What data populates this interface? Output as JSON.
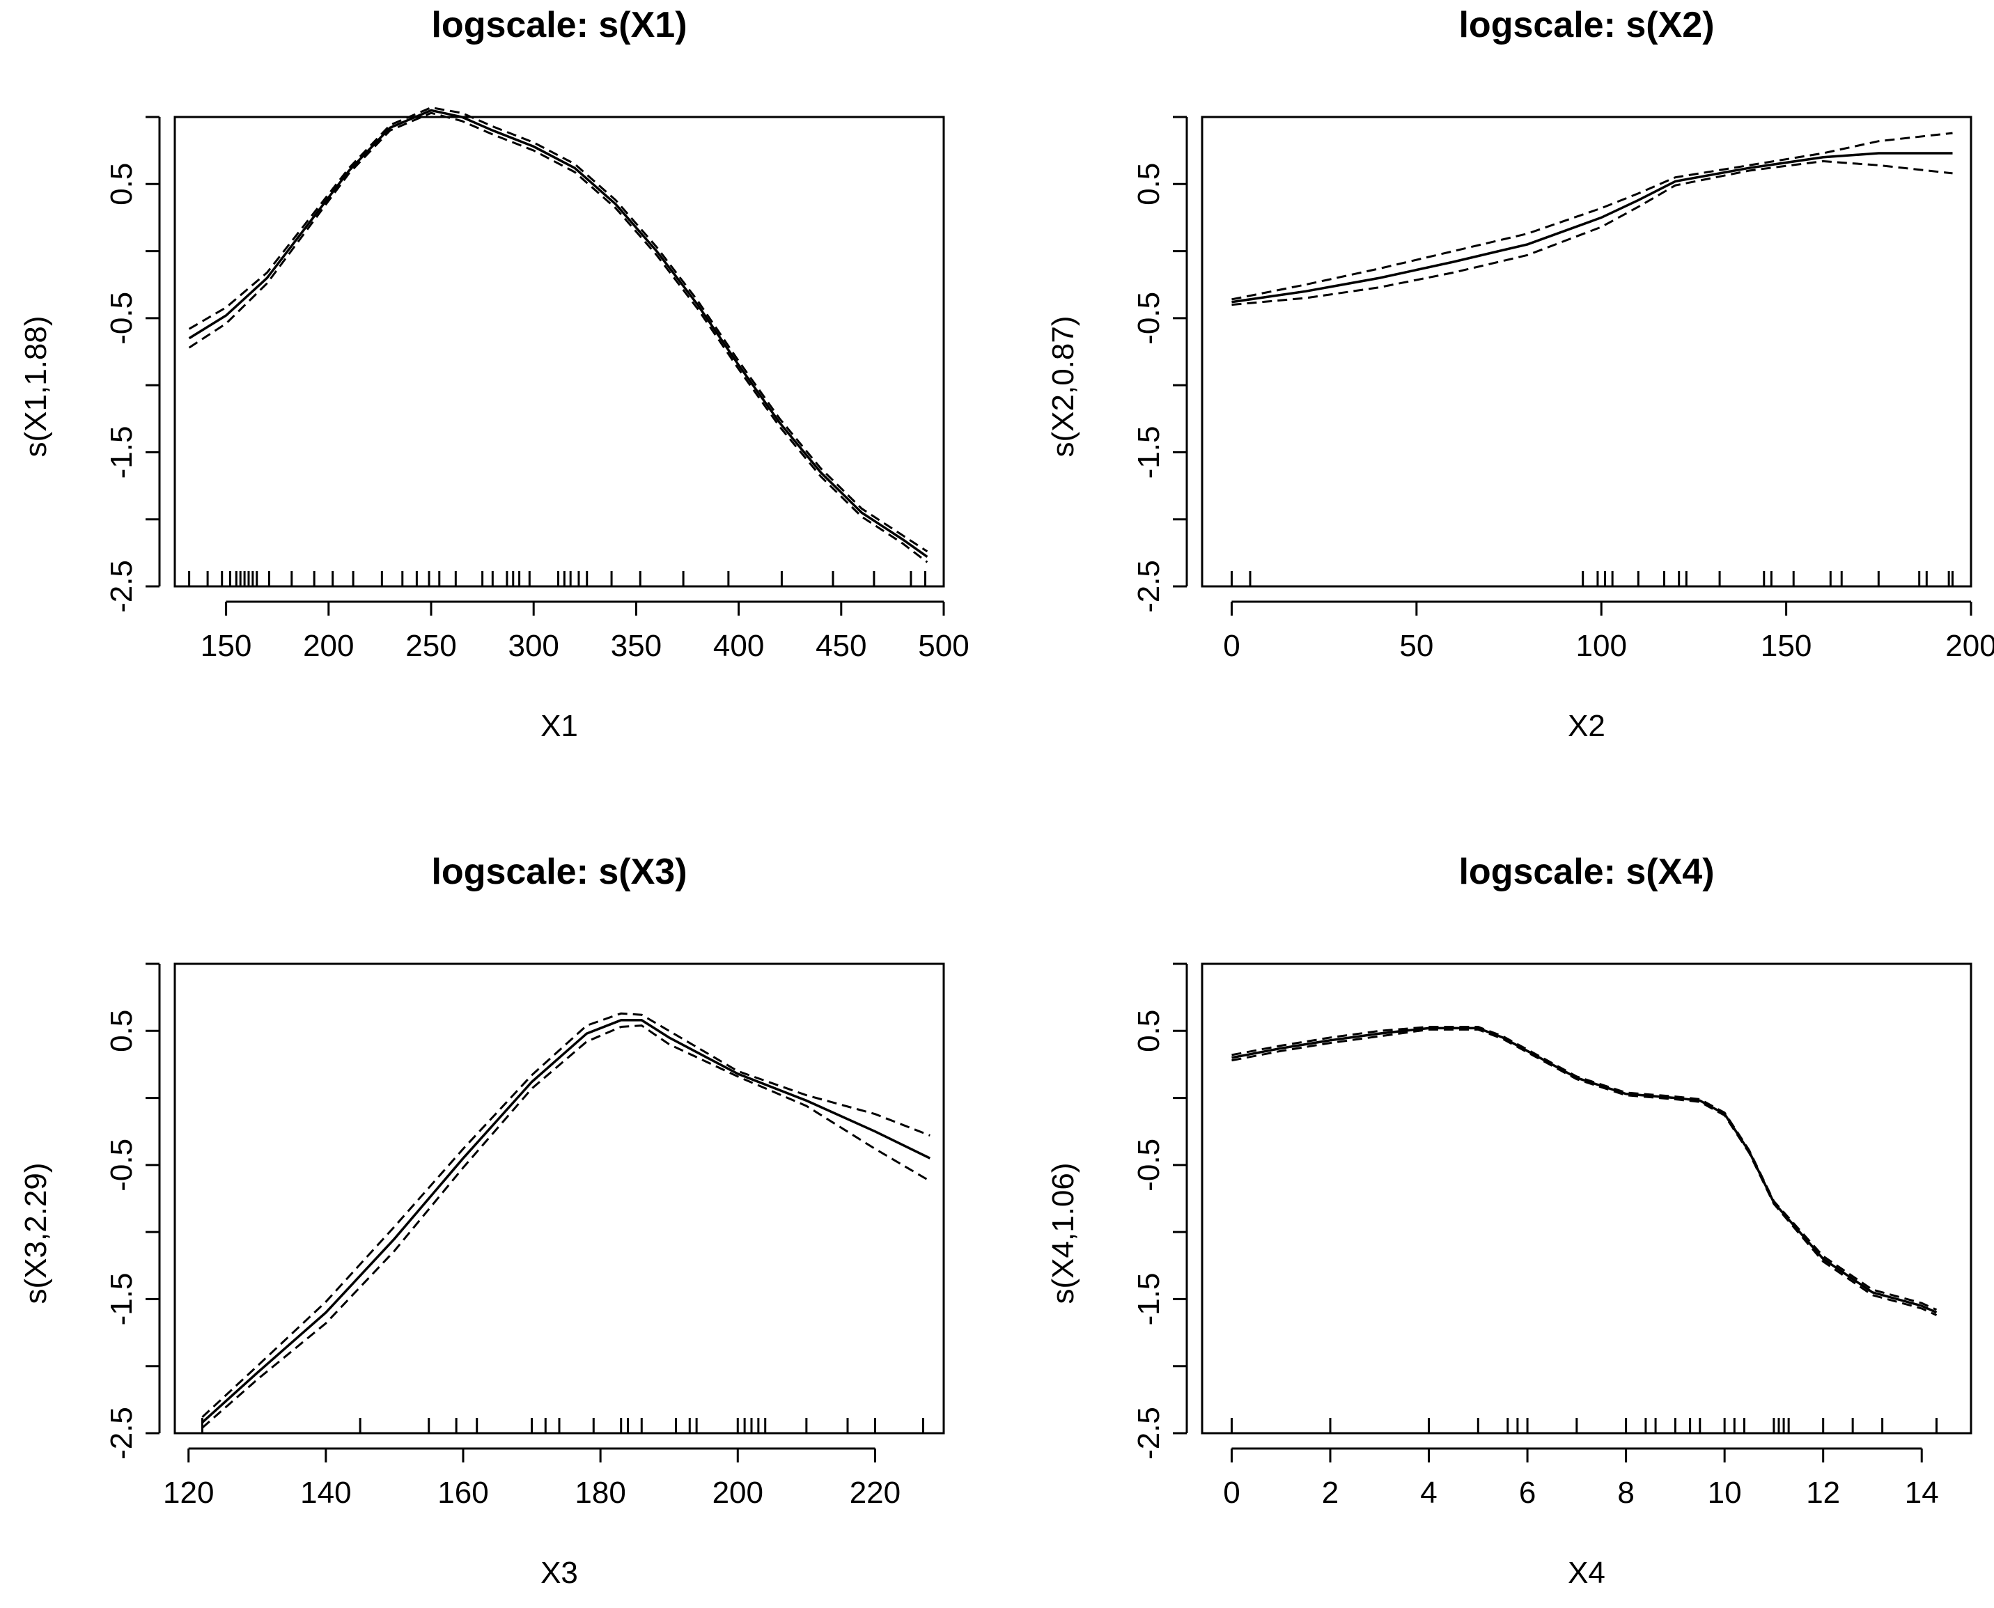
{
  "colors": {
    "line": "#000000",
    "background": "#ffffff"
  },
  "chart_data": [
    {
      "type": "line",
      "title": "logscale: s(X1)",
      "xlabel": "X1",
      "ylabel": "s(X1,1.88)",
      "xlim": [
        125,
        500
      ],
      "ylim": [
        -2.5,
        1.0
      ],
      "xticks": [
        150,
        200,
        250,
        300,
        350,
        400,
        450,
        500
      ],
      "yticks": [
        -2.5,
        -1.5,
        -0.5,
        0.5
      ],
      "series": [
        {
          "name": "fit",
          "style": "solid",
          "x": [
            132,
            150,
            170,
            190,
            210,
            230,
            250,
            265,
            280,
            300,
            320,
            340,
            360,
            380,
            400,
            420,
            440,
            460,
            480,
            492
          ],
          "y": [
            -0.65,
            -0.48,
            -0.2,
            0.2,
            0.6,
            0.92,
            1.05,
            1.0,
            0.9,
            0.78,
            0.62,
            0.35,
            0.0,
            -0.4,
            -0.85,
            -1.28,
            -1.65,
            -1.95,
            -2.15,
            -2.28
          ]
        },
        {
          "name": "upper",
          "style": "dashed",
          "x": [
            132,
            150,
            170,
            190,
            210,
            230,
            250,
            265,
            280,
            300,
            320,
            340,
            360,
            380,
            400,
            420,
            440,
            460,
            480,
            492
          ],
          "y": [
            -0.58,
            -0.42,
            -0.16,
            0.23,
            0.62,
            0.94,
            1.07,
            1.03,
            0.93,
            0.81,
            0.65,
            0.38,
            0.03,
            -0.37,
            -0.82,
            -1.25,
            -1.62,
            -1.92,
            -2.12,
            -2.24
          ]
        },
        {
          "name": "lower",
          "style": "dashed",
          "x": [
            132,
            150,
            170,
            190,
            210,
            230,
            250,
            265,
            280,
            300,
            320,
            340,
            360,
            380,
            400,
            420,
            440,
            460,
            480,
            492
          ],
          "y": [
            -0.72,
            -0.54,
            -0.24,
            0.17,
            0.58,
            0.9,
            1.03,
            0.97,
            0.87,
            0.75,
            0.59,
            0.32,
            -0.03,
            -0.43,
            -0.88,
            -1.31,
            -1.68,
            -1.98,
            -2.18,
            -2.32
          ]
        }
      ],
      "rug": [
        132,
        141,
        148,
        152,
        155,
        157,
        159,
        161,
        163,
        165,
        171,
        182,
        193,
        202,
        212,
        226,
        236,
        243,
        249,
        254,
        262,
        275,
        280,
        287,
        290,
        293,
        298,
        312,
        315,
        318,
        322,
        326,
        338,
        352,
        373,
        395,
        421,
        446,
        466,
        484,
        491
      ]
    },
    {
      "type": "line",
      "title": "logscale: s(X2)",
      "xlabel": "X2",
      "ylabel": "s(X2,0.87)",
      "xlim": [
        -8,
        200
      ],
      "ylim": [
        -2.5,
        1.0
      ],
      "xticks": [
        0,
        50,
        100,
        150,
        200
      ],
      "yticks": [
        -2.5,
        -1.5,
        -0.5,
        0.5
      ],
      "series": [
        {
          "name": "fit",
          "style": "solid",
          "x": [
            0,
            20,
            40,
            60,
            80,
            100,
            110,
            120,
            140,
            160,
            175,
            195
          ],
          "y": [
            -0.38,
            -0.3,
            -0.2,
            -0.08,
            0.05,
            0.25,
            0.38,
            0.52,
            0.62,
            0.7,
            0.73,
            0.73
          ]
        },
        {
          "name": "upper",
          "style": "dashed",
          "x": [
            0,
            20,
            40,
            60,
            80,
            100,
            110,
            120,
            140,
            160,
            175,
            195
          ],
          "y": [
            -0.36,
            -0.25,
            -0.13,
            0.0,
            0.13,
            0.32,
            0.43,
            0.55,
            0.64,
            0.73,
            0.82,
            0.88
          ]
        },
        {
          "name": "lower",
          "style": "dashed",
          "x": [
            0,
            20,
            40,
            60,
            80,
            100,
            110,
            120,
            140,
            160,
            175,
            195
          ],
          "y": [
            -0.4,
            -0.35,
            -0.27,
            -0.16,
            -0.03,
            0.18,
            0.33,
            0.49,
            0.6,
            0.67,
            0.64,
            0.58
          ]
        }
      ],
      "rug": [
        0,
        5,
        95,
        99,
        101,
        103,
        110,
        117,
        121,
        123,
        132,
        144,
        146,
        152,
        162,
        165,
        175,
        186,
        188,
        194,
        195
      ]
    },
    {
      "type": "line",
      "title": "logscale: s(X3)",
      "xlabel": "X3",
      "ylabel": "s(X3,2.29)",
      "xlim": [
        118,
        230
      ],
      "ylim": [
        -2.5,
        1.0
      ],
      "xticks": [
        120,
        140,
        160,
        180,
        200,
        220
      ],
      "yticks": [
        -2.5,
        -1.5,
        -0.5,
        0.5
      ],
      "series": [
        {
          "name": "fit",
          "style": "solid",
          "x": [
            122,
            130,
            140,
            150,
            160,
            170,
            178,
            183,
            186,
            190,
            200,
            210,
            220,
            228
          ],
          "y": [
            -2.42,
            -2.05,
            -1.6,
            -1.05,
            -0.45,
            0.12,
            0.48,
            0.58,
            0.58,
            0.45,
            0.18,
            -0.02,
            -0.25,
            -0.45
          ]
        },
        {
          "name": "upper",
          "style": "dashed",
          "x": [
            122,
            130,
            140,
            150,
            160,
            170,
            178,
            183,
            186,
            190,
            200,
            210,
            220,
            228
          ],
          "y": [
            -2.38,
            -2.0,
            -1.52,
            -0.96,
            -0.38,
            0.17,
            0.54,
            0.63,
            0.62,
            0.5,
            0.2,
            0.02,
            -0.12,
            -0.28
          ]
        },
        {
          "name": "lower",
          "style": "dashed",
          "x": [
            122,
            130,
            140,
            150,
            160,
            170,
            178,
            183,
            186,
            190,
            200,
            210,
            220,
            228
          ],
          "y": [
            -2.46,
            -2.1,
            -1.68,
            -1.14,
            -0.52,
            0.07,
            0.42,
            0.53,
            0.54,
            0.4,
            0.16,
            -0.06,
            -0.38,
            -0.62
          ]
        }
      ],
      "rug": [
        122,
        145,
        155,
        159,
        162,
        170,
        172,
        174,
        179,
        183,
        184,
        186,
        191,
        193,
        194,
        200,
        201,
        202,
        203,
        204,
        210,
        216,
        220,
        227
      ]
    },
    {
      "type": "line",
      "title": "logscale: s(X4)",
      "xlabel": "X4",
      "ylabel": "s(X4,1.06)",
      "xlim": [
        -0.6,
        15
      ],
      "ylim": [
        -2.5,
        1.0
      ],
      "xticks": [
        0,
        2,
        4,
        6,
        8,
        10,
        12,
        14
      ],
      "yticks": [
        -2.5,
        -1.5,
        -0.5,
        0.5
      ],
      "series": [
        {
          "name": "fit",
          "style": "solid",
          "x": [
            0,
            1,
            2,
            3,
            4,
            5,
            5.5,
            6,
            7,
            8,
            9,
            9.5,
            10,
            10.5,
            11,
            12,
            13,
            14,
            14.3
          ],
          "y": [
            0.3,
            0.37,
            0.43,
            0.48,
            0.52,
            0.52,
            0.45,
            0.35,
            0.15,
            0.03,
            0.0,
            -0.02,
            -0.12,
            -0.4,
            -0.78,
            -1.2,
            -1.45,
            -1.55,
            -1.6
          ]
        },
        {
          "name": "upper",
          "style": "dashed",
          "x": [
            0,
            1,
            2,
            3,
            4,
            5,
            5.5,
            6,
            7,
            8,
            9,
            9.5,
            10,
            10.5,
            11,
            12,
            13,
            14,
            14.3
          ],
          "y": [
            0.32,
            0.39,
            0.45,
            0.5,
            0.53,
            0.53,
            0.46,
            0.36,
            0.16,
            0.04,
            0.01,
            -0.01,
            -0.11,
            -0.39,
            -0.77,
            -1.18,
            -1.43,
            -1.53,
            -1.58
          ]
        },
        {
          "name": "lower",
          "style": "dashed",
          "x": [
            0,
            1,
            2,
            3,
            4,
            5,
            5.5,
            6,
            7,
            8,
            9,
            9.5,
            10,
            10.5,
            11,
            12,
            13,
            14,
            14.3
          ],
          "y": [
            0.28,
            0.35,
            0.41,
            0.46,
            0.51,
            0.51,
            0.44,
            0.34,
            0.14,
            0.02,
            -0.01,
            -0.03,
            -0.13,
            -0.41,
            -0.79,
            -1.22,
            -1.47,
            -1.57,
            -1.62
          ]
        }
      ],
      "rug": [
        0,
        2,
        4,
        5,
        5.6,
        5.8,
        6.0,
        7.0,
        8.0,
        8.4,
        8.6,
        9.0,
        9.3,
        9.5,
        10.0,
        10.2,
        10.4,
        11.0,
        11.1,
        11.2,
        11.3,
        12.0,
        12.6,
        13.2,
        14.3
      ]
    }
  ]
}
